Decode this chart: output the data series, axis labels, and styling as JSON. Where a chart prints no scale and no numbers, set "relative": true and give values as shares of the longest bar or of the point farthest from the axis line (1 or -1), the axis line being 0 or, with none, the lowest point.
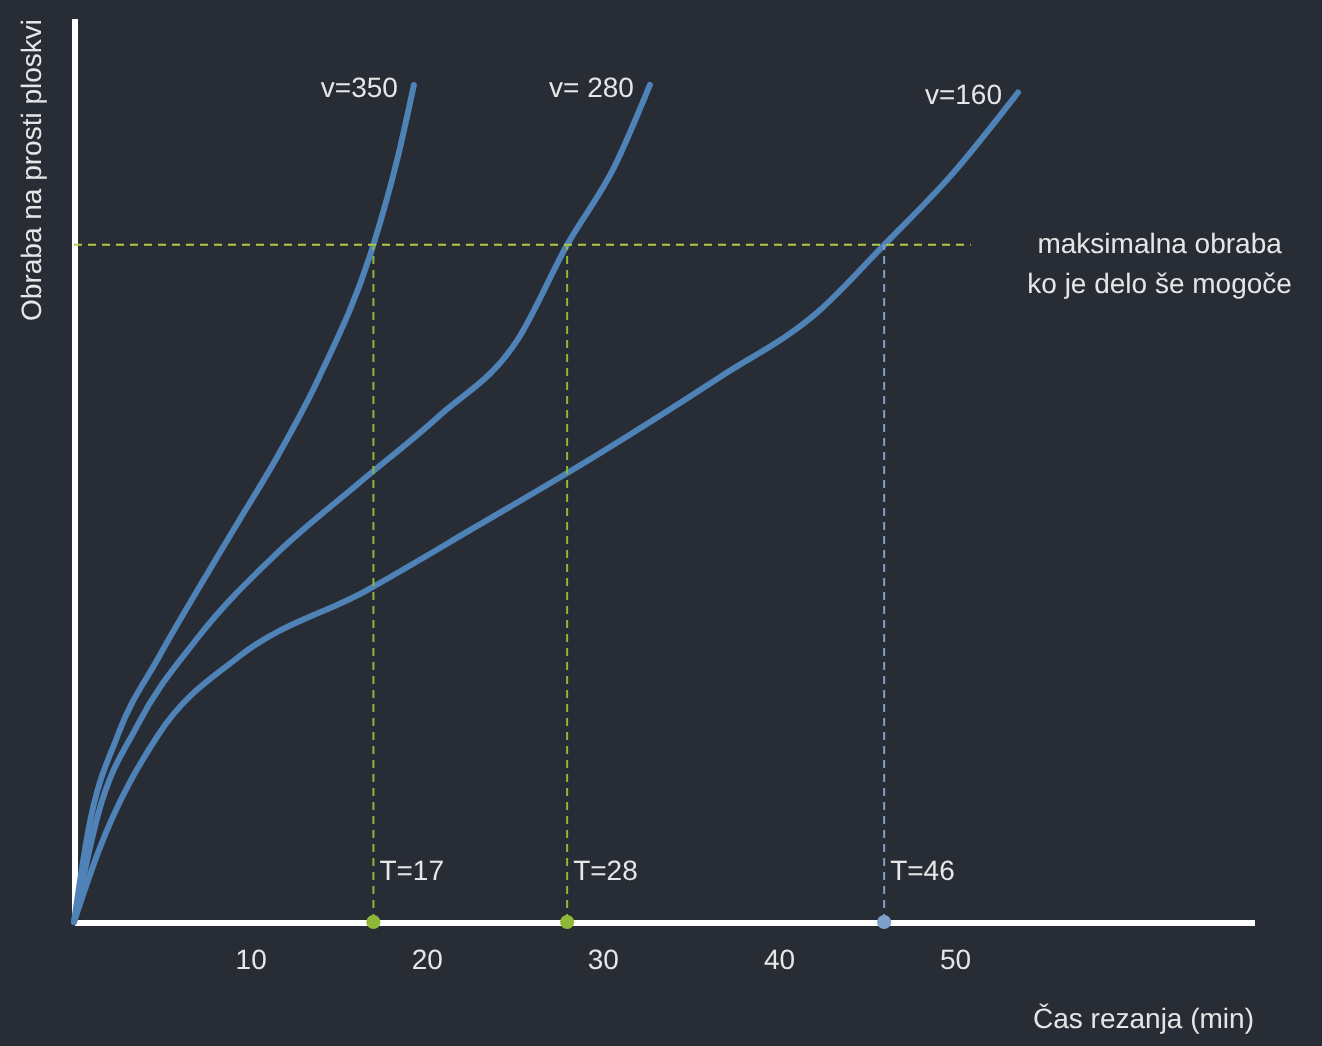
{
  "chart_data": {
    "type": "line",
    "relative": true,
    "xlabel": "Čas rezanja (min)",
    "ylabel": "Obraba na prosti ploskvi",
    "xlim": [
      0,
      67
    ],
    "xticks": [
      10,
      20,
      30,
      40,
      50
    ],
    "tick_labels": "x",
    "grid": false,
    "marker": "none",
    "line_style": "solid",
    "series": [
      {
        "name": "v=350",
        "color": "#4f83b8",
        "x": [
          0,
          0.8,
          2.5,
          4.8,
          7.0,
          9.3,
          11.6,
          13.9,
          17,
          18.4,
          19.3
        ],
        "values": [
          0,
          0.108,
          0.224,
          0.316,
          0.396,
          0.477,
          0.558,
          0.65,
          0.809,
          0.915,
          1.0
        ]
      },
      {
        "name": "v= 280",
        "color": "#4f83b8",
        "x": [
          0,
          1.4,
          3.6,
          7.0,
          11.6,
          16.1,
          20.7,
          25.2,
          28,
          30.7,
          32.7
        ],
        "values": [
          0,
          0.131,
          0.235,
          0.339,
          0.442,
          0.523,
          0.604,
          0.696,
          0.809,
          0.903,
          1.0
        ]
      },
      {
        "name": "v=160",
        "color": "#4f83b8",
        "x": [
          0,
          1.4,
          4.8,
          9.3,
          16.6,
          22.8,
          29.7,
          36.6,
          42.3,
          46,
          49.8,
          53.6
        ],
        "values": [
          0,
          0.085,
          0.224,
          0.316,
          0.396,
          0.472,
          0.558,
          0.65,
          0.73,
          0.809,
          0.892,
          0.991
        ]
      },
      {
        "type": "scatter",
        "marker": "circle",
        "colors": [
          "#8fb83a",
          "#8fb83a",
          "#7fa0c8"
        ],
        "x": [
          17,
          28,
          46
        ],
        "values": [
          0,
          0,
          0
        ]
      }
    ],
    "ref_lines": [
      {
        "axis": "y",
        "value": 0.809,
        "label": "maksimalna obraba\nko je delo še mogoče",
        "color": "#b5c94a",
        "line_style": "dashed"
      },
      {
        "axis": "x",
        "value": 17,
        "label": "T=17",
        "color": "#8fb83a",
        "line_style": "dashed"
      },
      {
        "axis": "x",
        "value": 28,
        "label": "T=28",
        "color": "#8fb83a",
        "line_style": "dashed"
      },
      {
        "axis": "x",
        "value": 46,
        "label": "T=46",
        "color": "#7fa0c8",
        "line_style": "dashed"
      }
    ]
  }
}
